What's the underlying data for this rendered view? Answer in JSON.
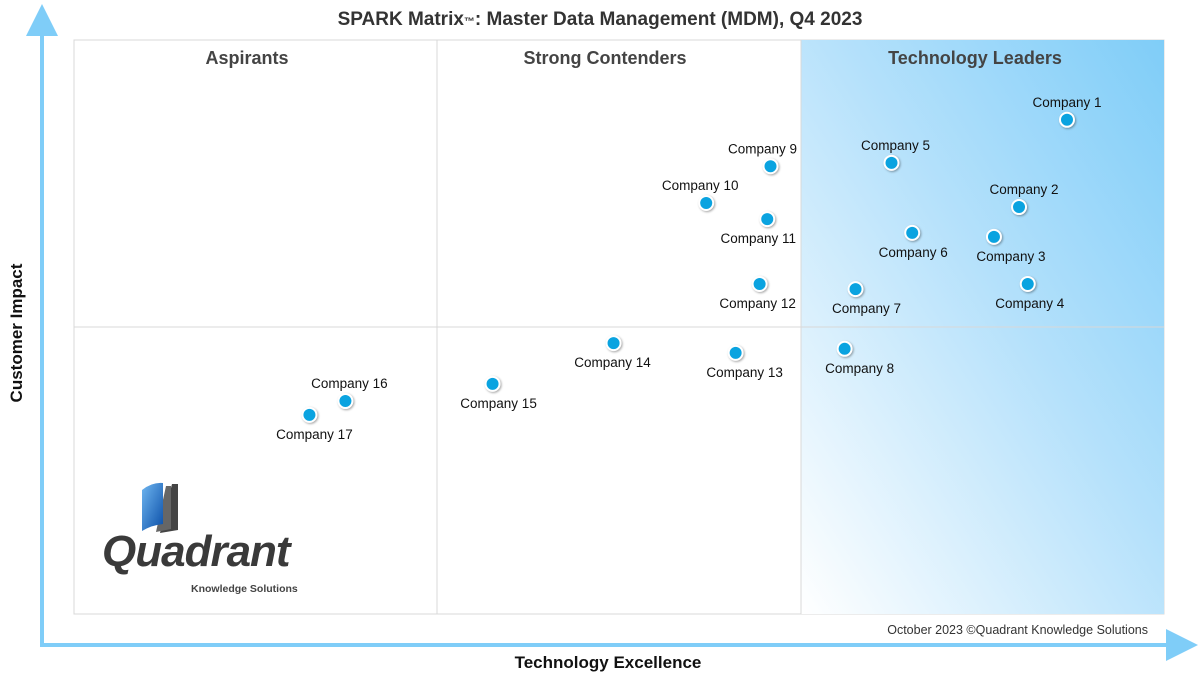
{
  "chart_data": {
    "type": "scatter",
    "title": "SPARK Matrix",
    "title_tm": "™",
    "title_rest": ": Master Data Management (MDM), Q4 2023",
    "xlabel": "Technology Excellence",
    "ylabel": "Customer Impact",
    "xlim": [
      0,
      10
    ],
    "ylim": [
      0,
      10
    ],
    "grid": false,
    "quadrants": [
      "Aspirants",
      "Strong Contenders",
      "Technology Leaders"
    ],
    "highlight_color": "#7fcdf8",
    "point_color": "#0aa3e0",
    "points": [
      {
        "label": "Company 1",
        "x": 9.11,
        "y": 8.61,
        "label_pos": "above"
      },
      {
        "label": "Company 2",
        "x": 8.67,
        "y": 7.09,
        "label_pos": "above"
      },
      {
        "label": "Company 3",
        "x": 8.44,
        "y": 6.57,
        "label_pos": "below"
      },
      {
        "label": "Company 4",
        "x": 8.75,
        "y": 5.75,
        "label_pos": "below"
      },
      {
        "label": "Company 5",
        "x": 7.5,
        "y": 7.86,
        "label_pos": "above"
      },
      {
        "label": "Company 6",
        "x": 7.69,
        "y": 6.64,
        "label_pos": "below"
      },
      {
        "label": "Company 7",
        "x": 7.17,
        "y": 5.66,
        "label_pos": "below"
      },
      {
        "label": "Company 8",
        "x": 7.07,
        "y": 4.62,
        "label_pos": "below"
      },
      {
        "label": "Company 9",
        "x": 6.39,
        "y": 7.8,
        "label_pos": "above"
      },
      {
        "label": "Company 10",
        "x": 5.8,
        "y": 7.16,
        "label_pos": "above"
      },
      {
        "label": "Company 11",
        "x": 6.36,
        "y": 6.88,
        "label_pos": "below"
      },
      {
        "label": "Company 12",
        "x": 6.29,
        "y": 5.75,
        "label_pos": "below"
      },
      {
        "label": "Company 13",
        "x": 6.07,
        "y": 4.55,
        "label_pos": "below"
      },
      {
        "label": "Company 14",
        "x": 4.95,
        "y": 4.72,
        "label_pos": "below"
      },
      {
        "label": "Company 15",
        "x": 3.84,
        "y": 4.01,
        "label_pos": "below"
      },
      {
        "label": "Company 16",
        "x": 2.49,
        "y": 3.71,
        "label_pos": "above"
      },
      {
        "label": "Company 17",
        "x": 2.16,
        "y": 3.47,
        "label_pos": "below"
      }
    ],
    "footnote": "October 2023 ©Quadrant Knowledge Solutions"
  },
  "logo": {
    "name": "Quadrant",
    "tagline": "Knowledge Solutions"
  }
}
